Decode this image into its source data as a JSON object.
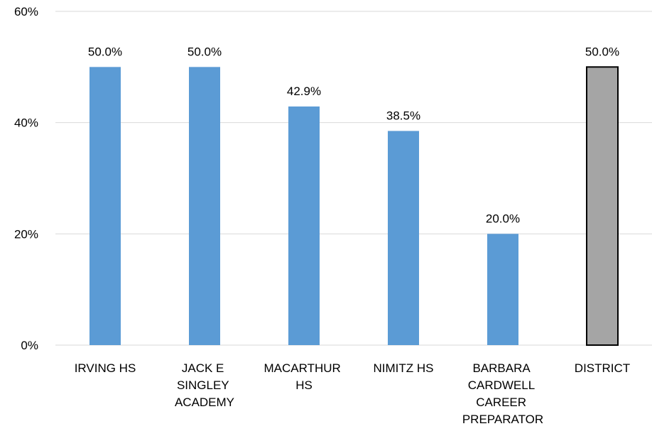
{
  "chart_data": {
    "type": "bar",
    "categories": [
      "IRVING HS",
      "JACK E SINGLEY ACADEMY",
      "MACARTHUR HS",
      "NIMITZ HS",
      "BARBARA CARDWELL CAREER PREPARATOR",
      "DISTRICT"
    ],
    "values": [
      50,
      50,
      42.9,
      38.5,
      20,
      50
    ],
    "value_labels": [
      "50.0%",
      "50.0%",
      "42.9%",
      "38.5%",
      "20.0%",
      "50.0%"
    ],
    "colors": [
      "#5b9bd5",
      "#5b9bd5",
      "#5b9bd5",
      "#5b9bd5",
      "#5b9bd5",
      "#a5a5a5"
    ],
    "ylim": [
      0,
      60
    ],
    "yticks": [
      {
        "value": 0,
        "label": "0%"
      },
      {
        "value": 20,
        "label": "20%"
      },
      {
        "value": 40,
        "label": "40%"
      },
      {
        "value": 60,
        "label": "60%"
      }
    ],
    "grid": true
  }
}
